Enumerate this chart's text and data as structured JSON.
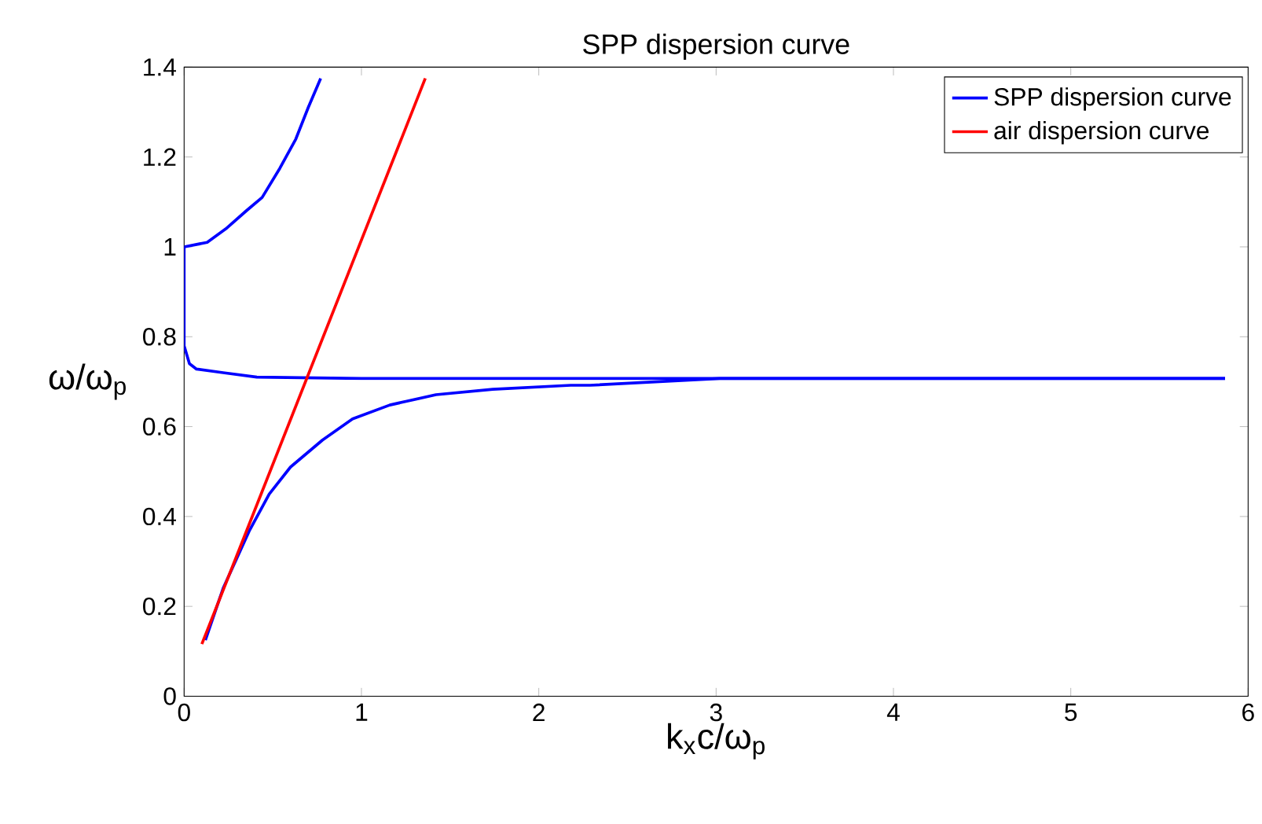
{
  "chart_data": {
    "type": "line",
    "title": "SPP dispersion curve",
    "xlabel": "k$_{x}$c/ω$_{p}$",
    "ylabel": "ω/ω$_{p}$",
    "xlim": [
      0,
      6
    ],
    "ylim": [
      0,
      1.4
    ],
    "xticks": [
      0,
      1,
      2,
      3,
      4,
      5,
      6
    ],
    "yticks": [
      0,
      0.2,
      0.4,
      0.6,
      0.8,
      1,
      1.2,
      1.4
    ],
    "grid": false,
    "legend": "top right",
    "line_style": "solid",
    "series": [
      {
        "name": "SPP dispersion curve",
        "color": "#0000ff",
        "x": [
          0.12,
          0.22,
          0.37,
          0.48,
          0.6,
          0.78,
          0.95,
          1.16,
          1.42,
          1.74,
          2.18,
          2.29,
          3.02,
          4.0,
          5.0,
          5.87
        ],
        "values": [
          0.125,
          0.24,
          0.37,
          0.45,
          0.51,
          0.57,
          0.617,
          0.648,
          0.671,
          0.683,
          0.692,
          0.692,
          0.707,
          0.707,
          0.707,
          0.707
        ]
      },
      {
        "color": "#0000ff",
        "x": [
          0,
          0.13,
          0.235,
          0.35,
          0.44,
          0.54,
          0.63,
          0.7,
          0.77
        ],
        "values": [
          1.0,
          1.01,
          1.04,
          1.08,
          1.11,
          1.175,
          1.24,
          1.31,
          1.375
        ]
      },
      {
        "color": "#0000ff",
        "x": [
          0,
          0,
          0.03,
          0.07,
          0.22,
          0.41,
          1.0,
          2.0,
          3.0,
          4.0,
          5.0,
          5.87
        ],
        "values": [
          1.0,
          0.78,
          0.74,
          0.728,
          0.72,
          0.71,
          0.707,
          0.707,
          0.707,
          0.707,
          0.707,
          0.707
        ]
      },
      {
        "name": "air dispersion curve",
        "color": "#ff0000",
        "x": [
          0.1,
          1.36
        ],
        "values": [
          0.116,
          1.375
        ]
      }
    ]
  }
}
